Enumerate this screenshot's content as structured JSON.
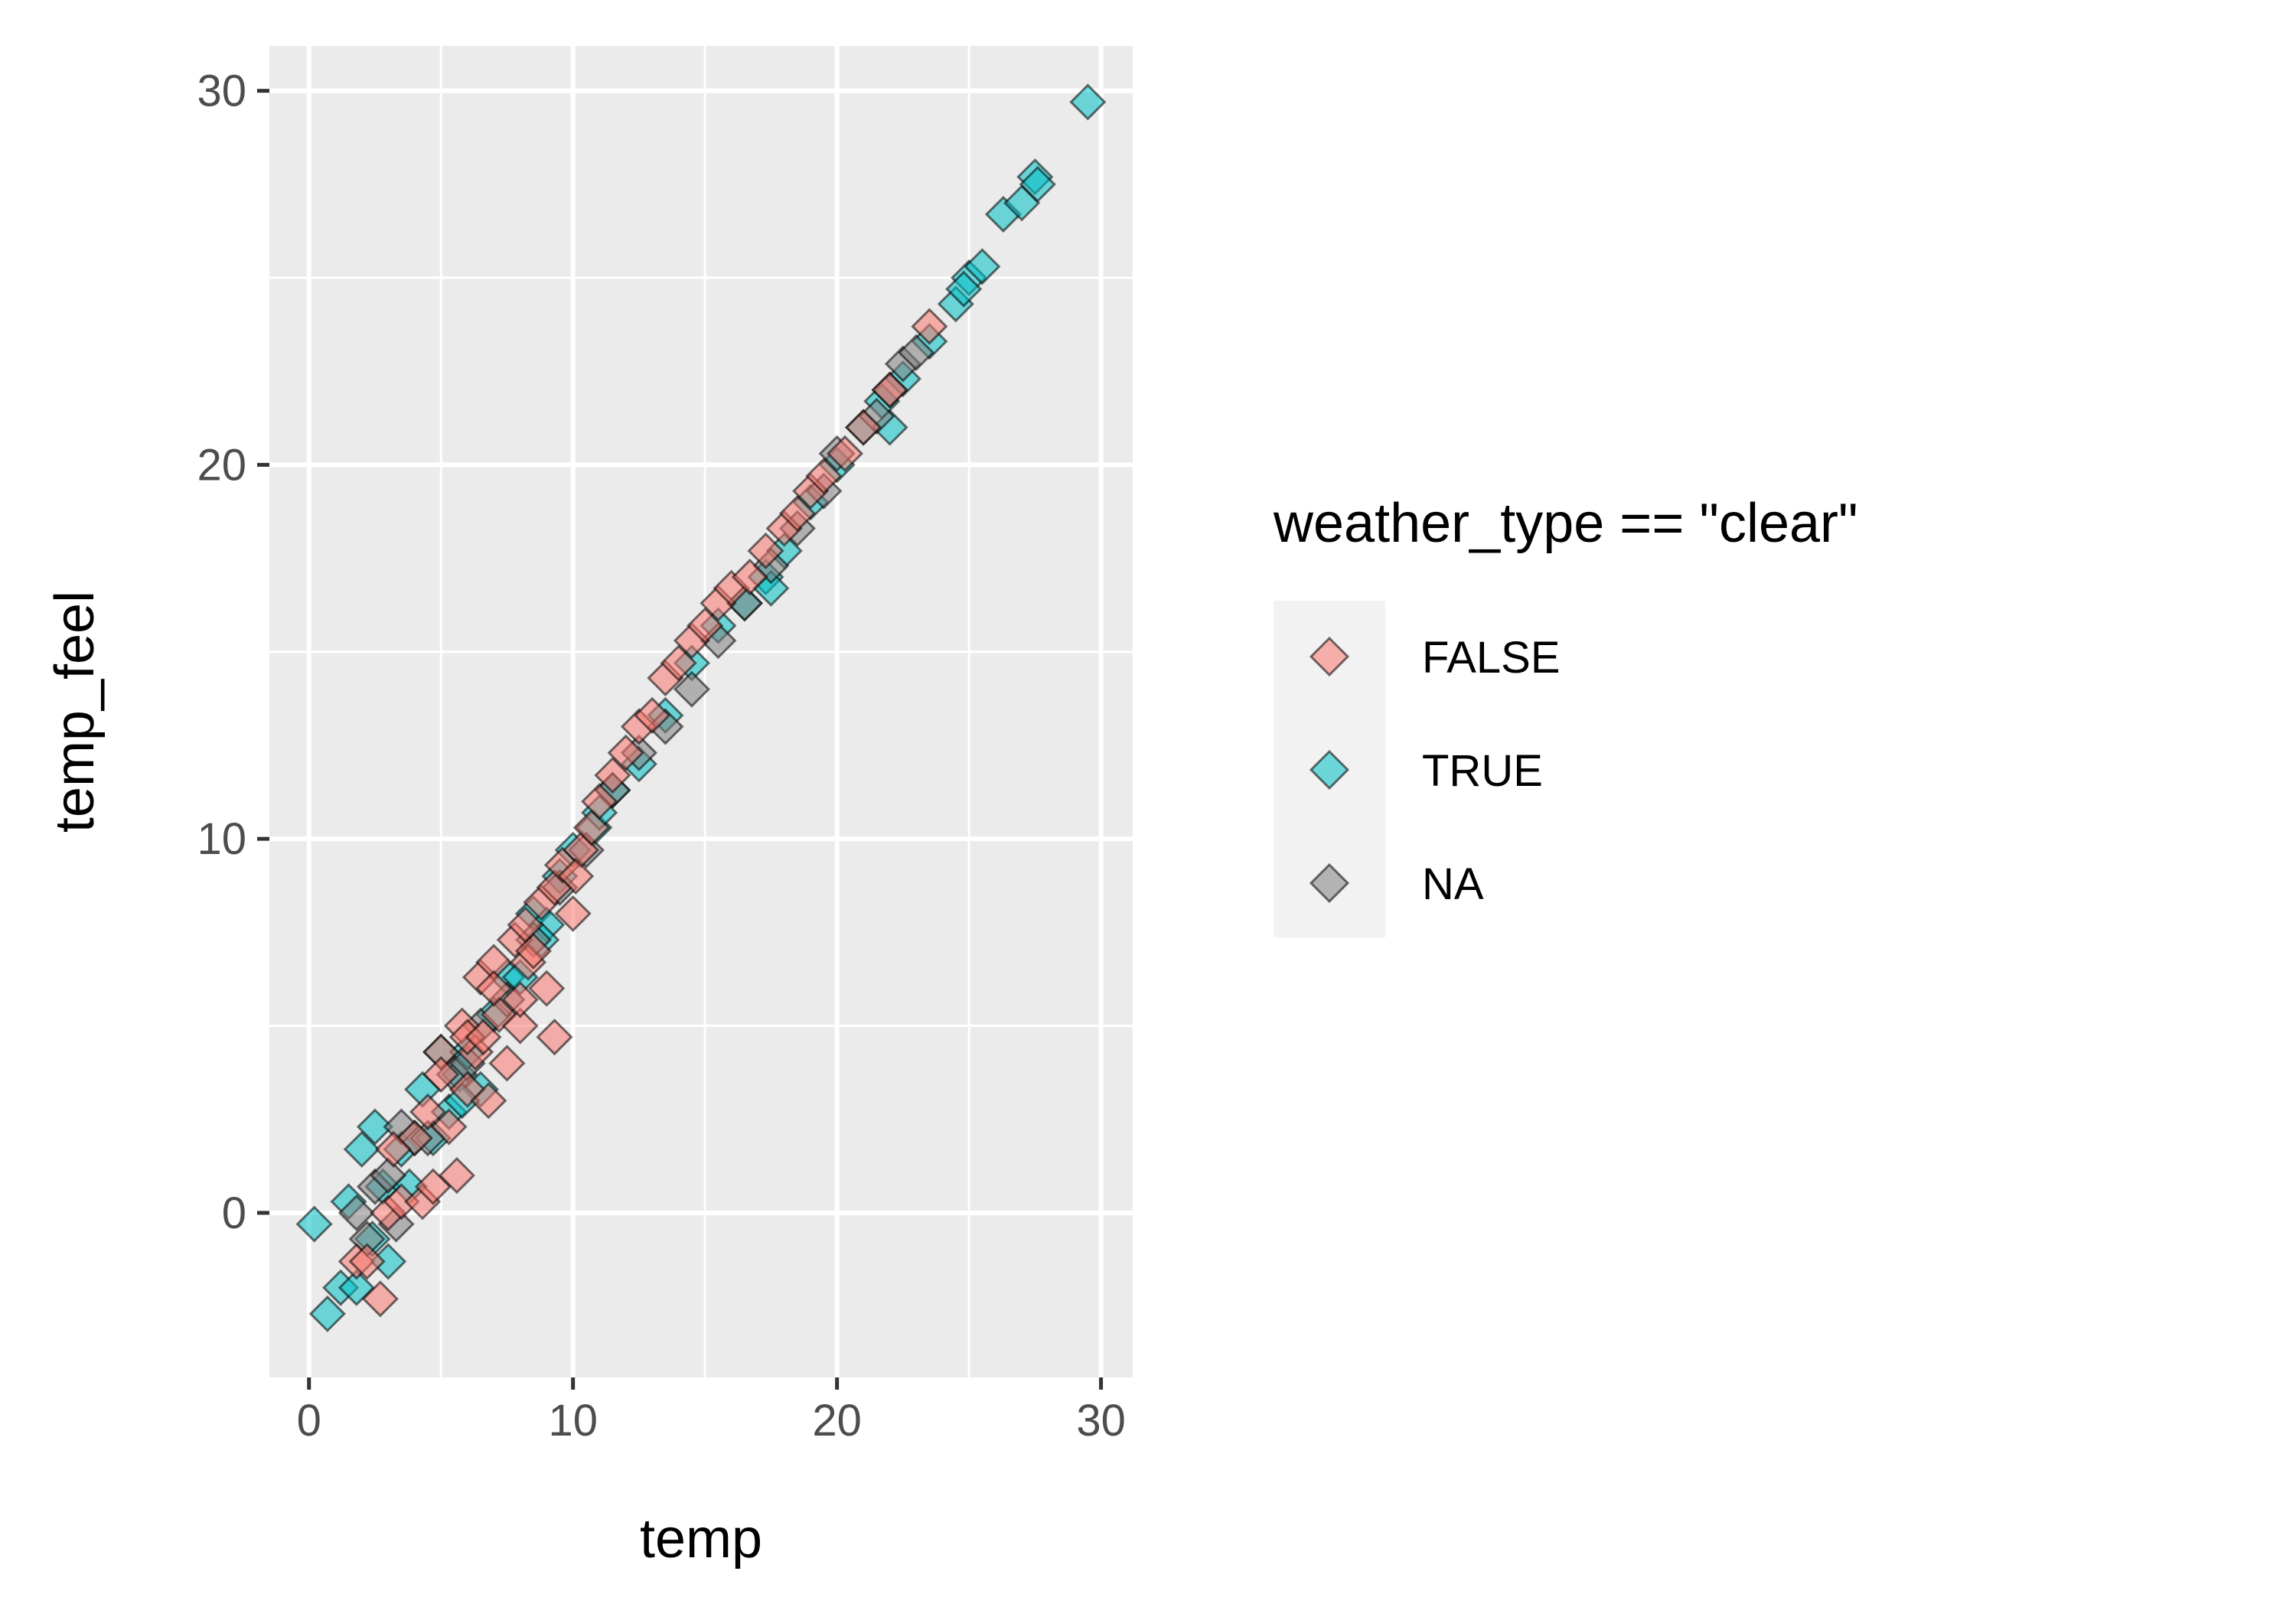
{
  "chart_data": {
    "type": "scatter",
    "title": "",
    "xlabel": "temp",
    "ylabel": "temp_feel",
    "xlim": [
      -1.5,
      31.2
    ],
    "ylim": [
      -4.4,
      31.2
    ],
    "x_ticks": [
      0,
      10,
      20,
      30
    ],
    "y_ticks": [
      0,
      10,
      20,
      30
    ],
    "x_tick_labels": [
      "0",
      "10",
      "20",
      "30"
    ],
    "y_tick_labels": [
      "0",
      "10",
      "20",
      "30"
    ],
    "grid": true,
    "marker": "diamond",
    "legend": {
      "title": "weather_type == \"clear\"",
      "placement": "right",
      "entries": [
        "FALSE",
        "TRUE",
        "NA"
      ]
    },
    "colors": {
      "FALSE": "#F8766D",
      "TRUE": "#00BFC4",
      "NA": "#7F7F7F",
      "panel": "#EBEBEB",
      "grid": "#FFFFFF"
    },
    "series": [
      {
        "name": "FALSE",
        "x": [
          1.8,
          2.2,
          2.7,
          3.0,
          3.5,
          4.0,
          4.3,
          4.7,
          5.0,
          5.3,
          5.6,
          5.8,
          6.0,
          6.3,
          6.5,
          6.8,
          7.0,
          7.2,
          7.5,
          7.8,
          8.0,
          8.3,
          8.5,
          8.8,
          9.0,
          9.3,
          9.6,
          10.0,
          10.3,
          10.7,
          11.0,
          11.5,
          12.0,
          12.5,
          13.0,
          13.5,
          14.0,
          14.5,
          15.0,
          15.5,
          16.0,
          16.7,
          17.3,
          18.0,
          18.5,
          19.0,
          19.5,
          20.3,
          21.0,
          22.0,
          23.5,
          5.0,
          6.0,
          7.0,
          8.0,
          9.3,
          3.2,
          4.5,
          6.6,
          8.2,
          10.1
        ],
        "y": [
          -1.3,
          -1.3,
          -2.3,
          0.0,
          0.3,
          2.0,
          0.3,
          0.7,
          4.3,
          2.3,
          1.0,
          5.0,
          3.3,
          4.3,
          6.3,
          3.0,
          6.7,
          5.3,
          4.0,
          7.3,
          5.0,
          6.7,
          7.0,
          8.3,
          6.0,
          8.7,
          9.3,
          8.0,
          9.7,
          10.3,
          11.0,
          11.7,
          12.3,
          13.0,
          13.3,
          14.3,
          14.7,
          15.3,
          15.7,
          16.3,
          16.7,
          17.0,
          17.7,
          18.3,
          18.7,
          19.3,
          19.7,
          20.3,
          21.0,
          22.0,
          23.7,
          3.7,
          4.7,
          6.0,
          5.7,
          4.7,
          1.7,
          2.7,
          4.7,
          7.7,
          9.0
        ]
      },
      {
        "name": "TRUE",
        "x": [
          0.2,
          0.7,
          1.2,
          1.8,
          2.0,
          2.5,
          2.8,
          3.0,
          3.5,
          4.0,
          4.3,
          4.7,
          5.0,
          5.3,
          5.7,
          6.0,
          6.5,
          7.0,
          7.5,
          8.0,
          8.5,
          9.0,
          9.5,
          10.0,
          10.8,
          11.5,
          12.5,
          13.5,
          14.5,
          15.5,
          16.5,
          17.3,
          18.0,
          19.0,
          20.0,
          21.0,
          21.7,
          22.5,
          23.5,
          24.5,
          25.0,
          25.5,
          26.3,
          27.0,
          27.5,
          29.5,
          2.4,
          3.8,
          1.5,
          5.8,
          8.8,
          11.0,
          17.5,
          22.0,
          24.8,
          27.6
        ],
        "y": [
          -0.3,
          -2.7,
          -2.0,
          -2.0,
          1.7,
          2.3,
          0.7,
          -1.3,
          1.7,
          2.0,
          3.3,
          2.0,
          4.3,
          2.7,
          3.7,
          4.3,
          3.3,
          5.3,
          6.3,
          6.3,
          8.0,
          7.7,
          9.0,
          9.7,
          10.3,
          11.3,
          12.0,
          13.3,
          14.7,
          15.7,
          16.3,
          17.0,
          17.7,
          19.0,
          20.0,
          21.0,
          21.7,
          22.3,
          23.3,
          24.3,
          25.0,
          25.3,
          26.7,
          27.0,
          27.7,
          29.7,
          -0.7,
          0.7,
          0.3,
          3.0,
          7.3,
          10.7,
          16.7,
          21.0,
          24.7,
          27.5
        ]
      },
      {
        "name": "NA",
        "x": [
          1.8,
          2.5,
          3.0,
          3.5,
          4.5,
          5.5,
          6.0,
          6.5,
          7.5,
          8.5,
          9.5,
          10.5,
          11.5,
          12.5,
          13.5,
          14.5,
          15.5,
          16.5,
          17.5,
          18.5,
          19.5,
          20.0,
          21.5,
          22.0,
          22.5,
          23.0,
          2.2,
          3.3
        ],
        "y": [
          0.0,
          0.7,
          1.0,
          2.3,
          2.0,
          3.7,
          4.0,
          5.0,
          5.7,
          7.3,
          8.7,
          9.7,
          11.3,
          12.3,
          13.0,
          14.0,
          15.3,
          16.3,
          17.3,
          18.3,
          19.3,
          20.3,
          21.3,
          22.0,
          22.7,
          23.0,
          -0.7,
          -0.3
        ]
      }
    ]
  }
}
